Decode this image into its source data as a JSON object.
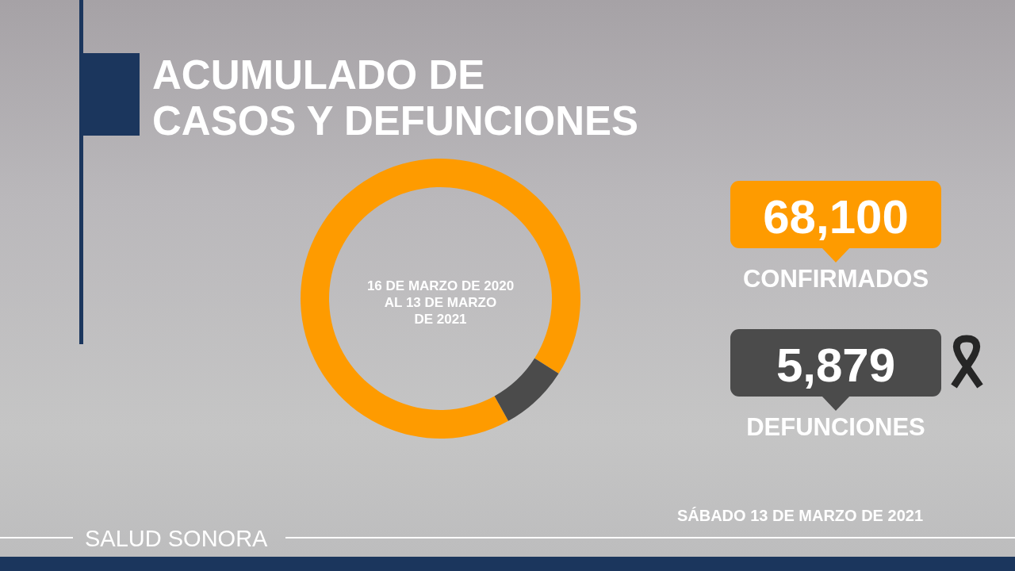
{
  "chart_data": {
    "type": "donut",
    "title": "ACUMULADO DE\nCASOS Y DEFUNCIONES",
    "subtitle": "16 DE MARZO DE 2020\nAL 13 DE MARZO\nDE 2021",
    "categories": [
      "CONFIRMADOS",
      "DEFUNCIONES"
    ],
    "values": [
      68100,
      5879
    ],
    "colors": [
      "#fe9b00",
      "#4b4b4b"
    ],
    "value_labels": [
      "68,100",
      "5,879"
    ],
    "legend": "right",
    "annotations": [
      "SÁBADO 13 DE MARZO DE 2021",
      "SALUD SONORA"
    ]
  }
}
